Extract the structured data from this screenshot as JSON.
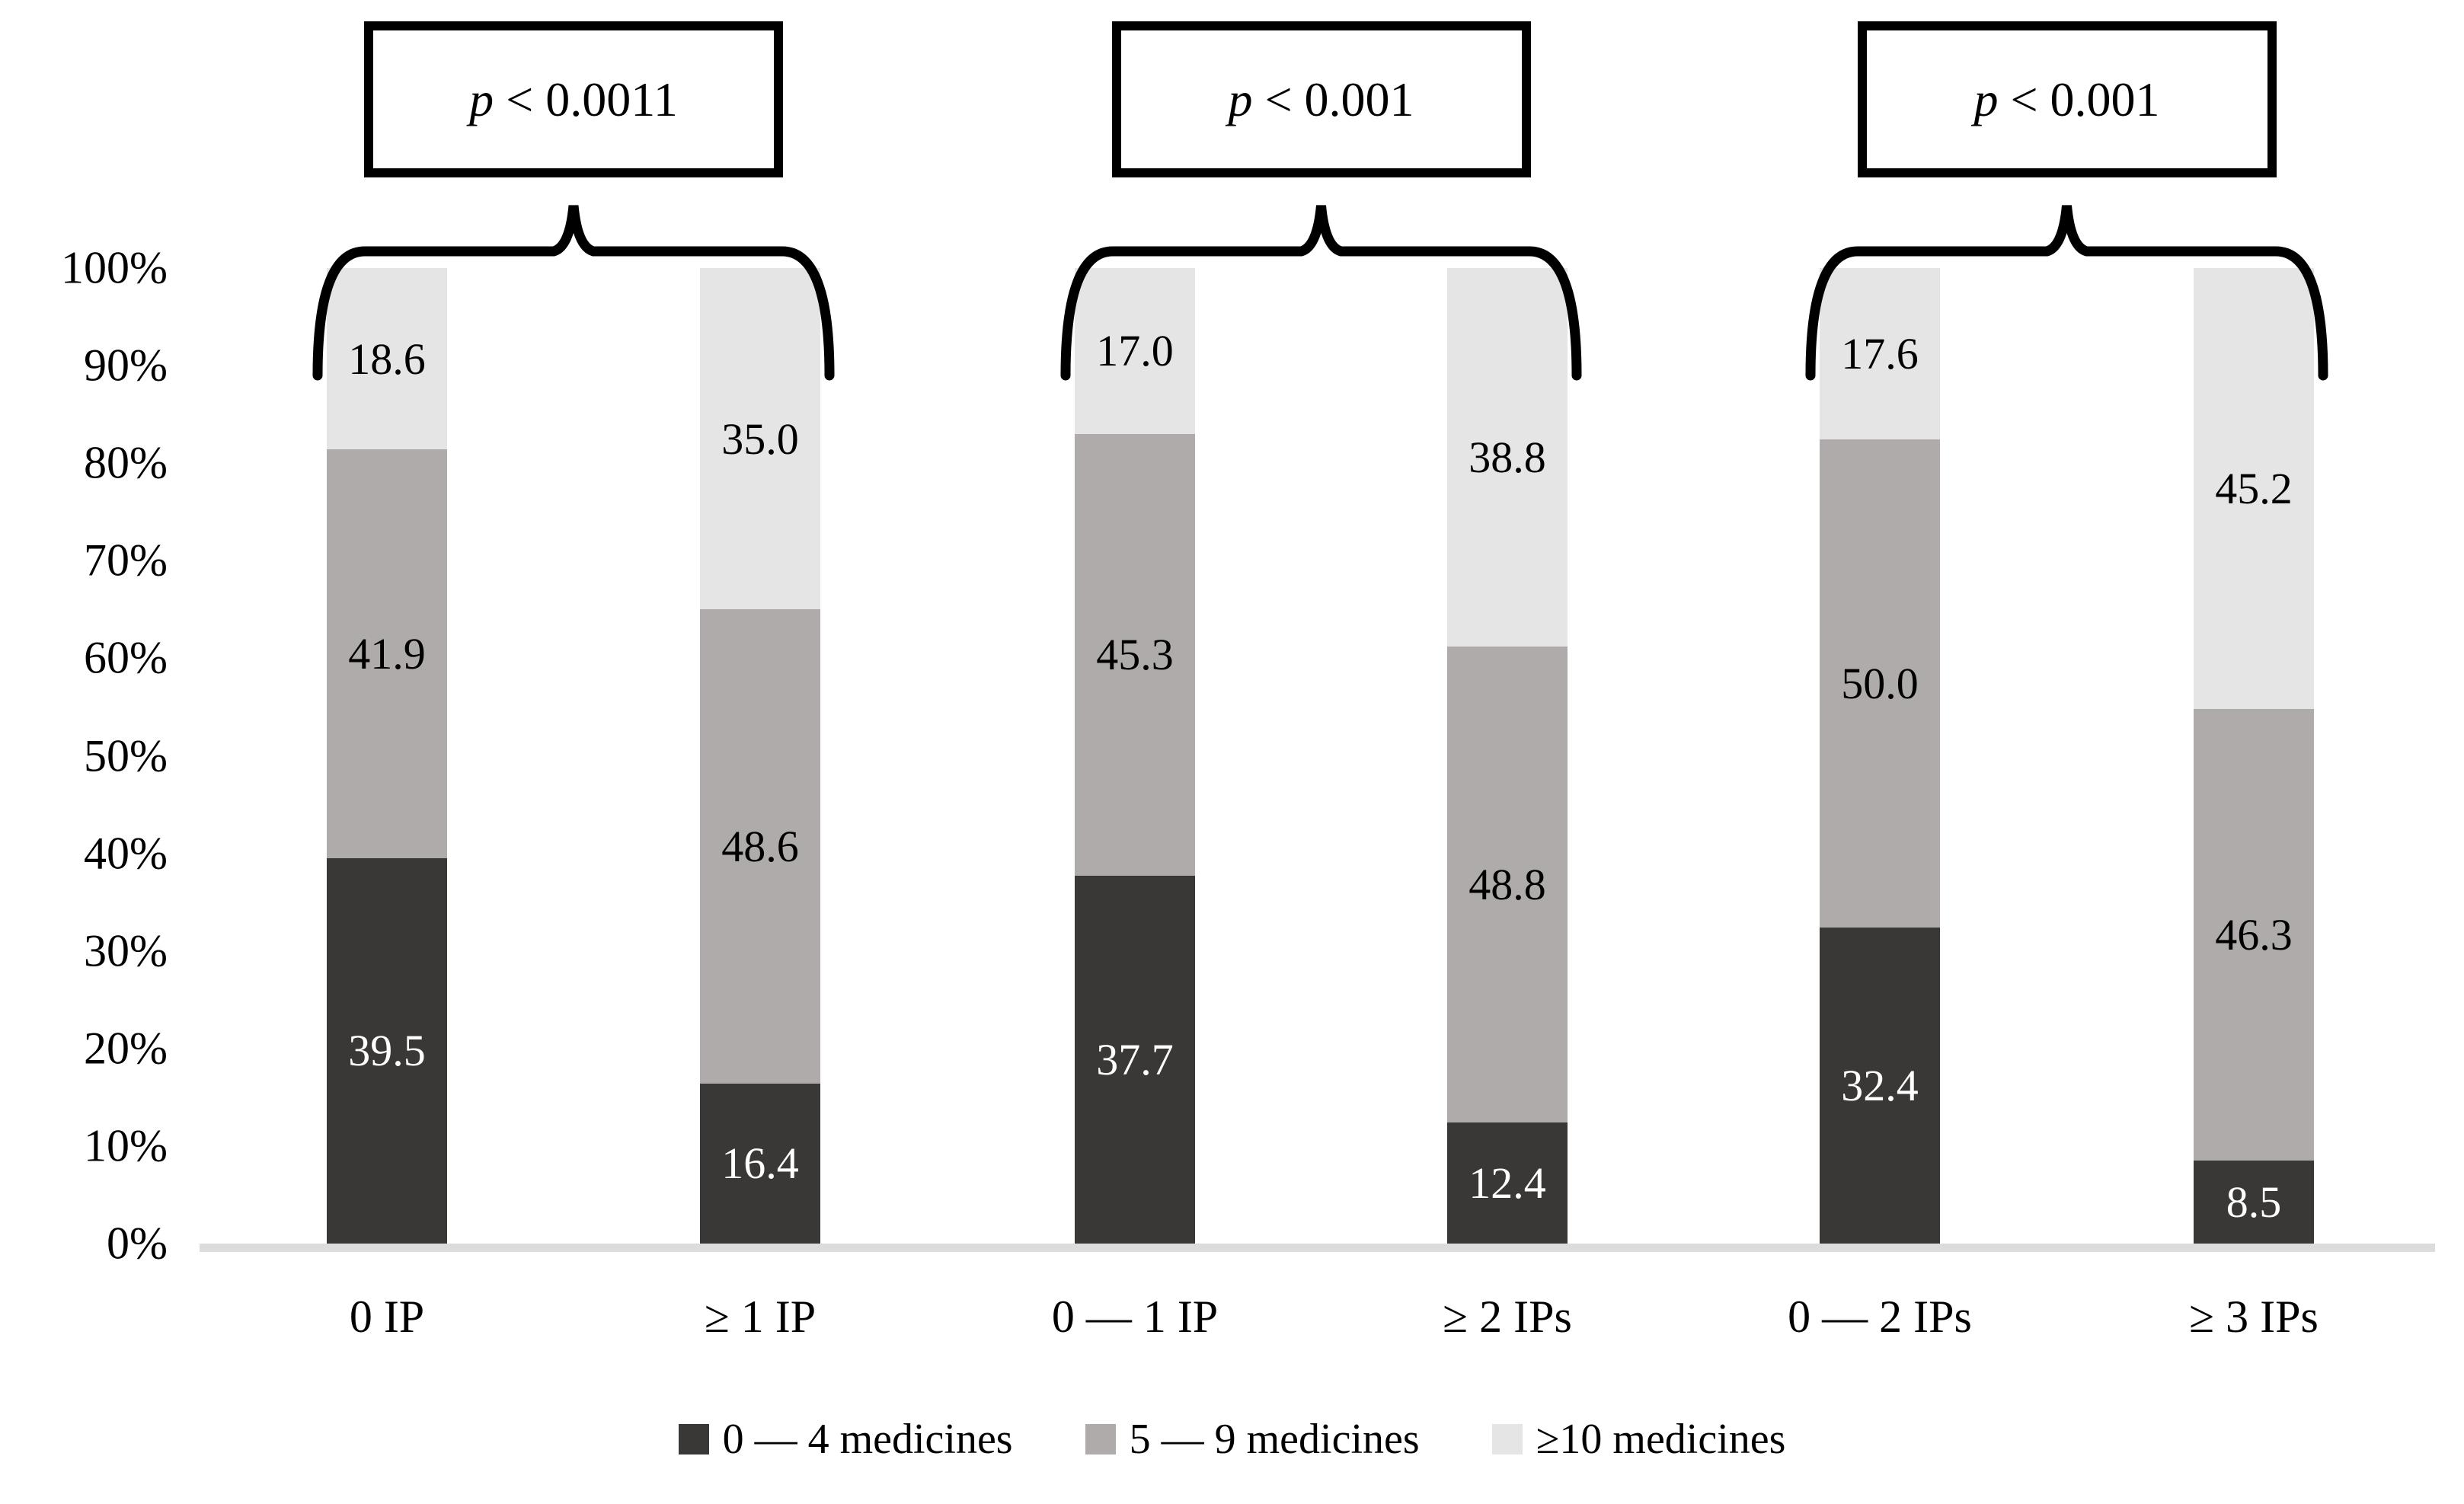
{
  "chart_data": {
    "type": "bar",
    "stacked": true,
    "unit": "%",
    "title": "",
    "xlabel": "",
    "ylabel": "",
    "ylim": [
      0,
      100
    ],
    "grid": false,
    "legend_position": "bottom",
    "y_tick_labels": [
      "100%",
      "90%",
      "80%",
      "70%",
      "60%",
      "50%",
      "40%",
      "30%",
      "20%",
      "10%",
      "0%"
    ],
    "categories": [
      "0 IP",
      "≥ 1 IP",
      "0 — 1 IP",
      "≥ 2 IPs",
      "0 — 2 IPs",
      "≥ 3 IPs"
    ],
    "series": [
      {
        "name": "0 — 4 medicines",
        "color": "#3a3837",
        "label_color": "#ffffff",
        "values": [
          39.5,
          16.4,
          37.7,
          12.4,
          32.4,
          8.5
        ]
      },
      {
        "name": "5 — 9 medicines",
        "color": "#afabaa",
        "label_color": "#000000",
        "values": [
          41.9,
          48.6,
          45.3,
          48.8,
          50.0,
          46.3
        ]
      },
      {
        "name": "≥10 medicines",
        "color": "#e6e5e5",
        "label_color": "#000000",
        "values": [
          18.6,
          35.0,
          17.0,
          38.8,
          17.6,
          45.2
        ]
      }
    ],
    "annotations": [
      {
        "label": "p < 0.0011",
        "bars": [
          0,
          1
        ]
      },
      {
        "label": "p < 0.001",
        "bars": [
          2,
          3
        ]
      },
      {
        "label": "p < 0.001",
        "bars": [
          4,
          5
        ]
      }
    ]
  },
  "colors": {
    "axis_line": "#dcdcdc",
    "brace": "#000000",
    "box_border": "#000000",
    "background": "#ffffff"
  }
}
